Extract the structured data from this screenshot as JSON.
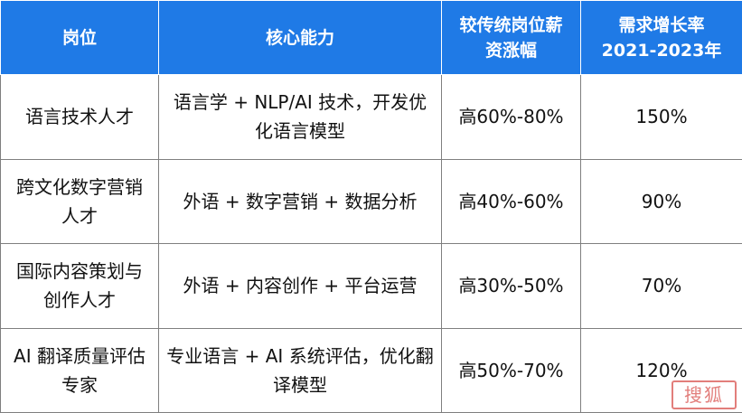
{
  "table": {
    "headers": [
      "岗位",
      "核心能力",
      "较传统岗位薪资涨幅",
      "需求增长率2021-2023年"
    ],
    "header_lines": {
      "h3_line1": "较传统岗位薪",
      "h3_line2": "资涨幅",
      "h4_line1": "需求增长率",
      "h4_line2": "2021-2023年"
    },
    "rows": [
      {
        "position": "语言技术人才",
        "skills": "语言学 + NLP/AI 技术，开发优化语言模型",
        "salary": "高60%-80%",
        "growth": "150%"
      },
      {
        "position": "跨文化数字营销人才",
        "skills": "外语 + 数字营销 + 数据分析",
        "salary": "高40%-60%",
        "growth": "90%"
      },
      {
        "position": "国际内容策划与创作人才",
        "skills": "外语 + 内容创作 + 平台运营",
        "salary": "高30%-50%",
        "growth": "70%"
      },
      {
        "position": "AI 翻译质量评估专家",
        "skills": "专业语言 + AI 系统评估，优化翻译模型",
        "salary": "高50%-70%",
        "growth": "120%"
      }
    ]
  },
  "watermark": {
    "text": "搜狐",
    "color": "#d9534f"
  },
  "colors": {
    "header_bg": "#1f7ae6",
    "header_text": "#ffffff",
    "border": "#7f7f7f"
  }
}
